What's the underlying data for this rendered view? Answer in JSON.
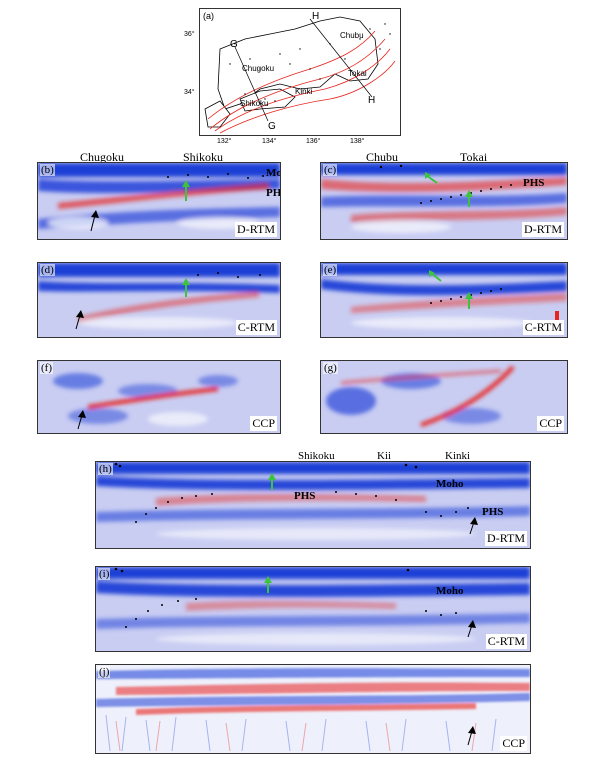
{
  "map": {
    "label": "(a)",
    "lat_ticks": [
      "36°",
      "34°"
    ],
    "lon_ticks": [
      "132°",
      "134°",
      "136°",
      "138°"
    ],
    "regions": [
      "Chugoku",
      "Shikoku",
      "Kinki",
      "Chubu",
      "Tokai"
    ],
    "profile_letters": [
      "G",
      "G",
      "H",
      "H"
    ]
  },
  "headers": {
    "chugoku": "Chugoku",
    "shikoku": "Shikoku",
    "chubu": "Chubu",
    "tokai": "Tokai",
    "shikoku2": "Shikoku",
    "kii": "Kii",
    "kinki": "Kinki"
  },
  "panels": {
    "b": {
      "label": "(b)",
      "method": "D-RTM",
      "moho": "Moho",
      "phs": "PHS"
    },
    "c": {
      "label": "(c)",
      "method": "D-RTM",
      "phs": "PHS"
    },
    "d": {
      "label": "(d)",
      "method": "C-RTM"
    },
    "e": {
      "label": "(e)",
      "method": "C-RTM"
    },
    "f": {
      "label": "(f)",
      "method": "CCP"
    },
    "g": {
      "label": "(g)",
      "method": "CCP"
    },
    "h": {
      "label": "(h)",
      "method": "D-RTM",
      "moho": "Moho",
      "phs1": "PHS",
      "phs2": "PHS"
    },
    "i": {
      "label": "(i)",
      "method": "C-RTM",
      "moho": "Moho"
    },
    "j": {
      "label": "(j)",
      "method": "CCP"
    }
  },
  "colors": {
    "blue": "#1f3fd6",
    "red": "#e8231c",
    "background": "#c9cdf2",
    "green_arrow": "#3cc43c",
    "black_arrow": "#000000"
  }
}
